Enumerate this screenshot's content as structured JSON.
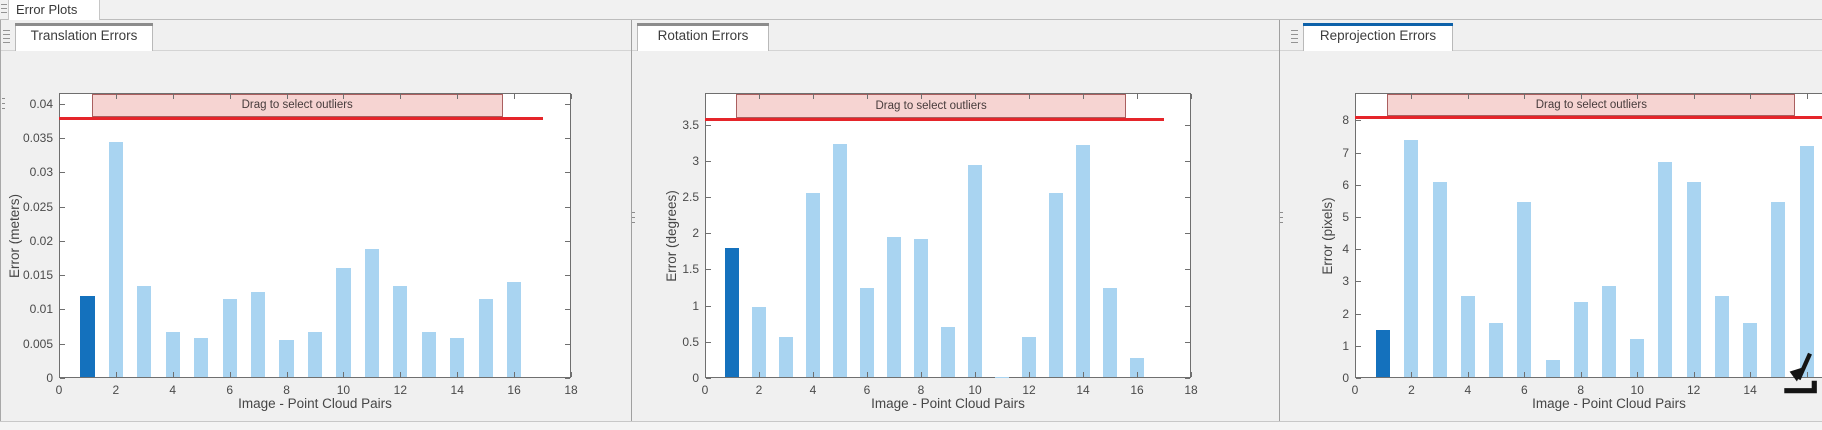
{
  "window": {
    "document_tab_label": "Error Plots"
  },
  "figure_tabs": [
    {
      "label": "Translation Errors",
      "active": false
    },
    {
      "label": "Rotation Errors",
      "active": false
    },
    {
      "label": "Reprojection Errors",
      "active": true
    }
  ],
  "colors": {
    "bar_light": "#a9d4f1",
    "bar_highlight": "#1471bd",
    "threshold_line": "#e5252a",
    "band_fill": "#f6d4d2",
    "band_border": "#aa5f5f",
    "active_tab_accent": "#0d61a9",
    "inactive_tab_accent": "#8c8c8c"
  },
  "band_label": "Drag to select outliers",
  "chart_data": [
    {
      "type": "bar",
      "title": "Translation Errors",
      "xlabel": "Image - Point Cloud Pairs",
      "ylabel": "Error (meters)",
      "xlim": [
        0,
        18
      ],
      "ylim": [
        0,
        0.0416
      ],
      "x": [
        1,
        2,
        3,
        4,
        5,
        6,
        7,
        8,
        9,
        10,
        11,
        12,
        13,
        14,
        15,
        16
      ],
      "values": [
        0.012,
        0.0345,
        0.0135,
        0.0067,
        0.0058,
        0.0116,
        0.0126,
        0.0056,
        0.0067,
        0.016,
        0.0188,
        0.0135,
        0.0067,
        0.0058,
        0.0116,
        0.014
      ],
      "highlight_index": 0,
      "yticks": {
        "values": [
          0,
          0.005,
          0.01,
          0.015,
          0.02,
          0.025,
          0.03,
          0.035,
          0.04
        ],
        "labels": [
          "0",
          "0.005",
          "0.01",
          "0.015",
          "0.02",
          "0.025",
          "0.03",
          "0.035",
          "0.04"
        ]
      },
      "xticks": {
        "values": [
          0,
          2,
          4,
          6,
          8,
          10,
          12,
          14,
          16,
          18
        ],
        "labels": [
          "0",
          "2",
          "4",
          "6",
          "8",
          "10",
          "12",
          "14",
          "16",
          "18"
        ]
      },
      "threshold": 0.038,
      "threshold_x_end": 17,
      "band": {
        "x_start": 1.15,
        "x_end": 15.6
      }
    },
    {
      "type": "bar",
      "title": "Rotation Errors",
      "xlabel": "Image - Point Cloud Pairs",
      "ylabel": "Error (degrees)",
      "xlim": [
        0,
        18
      ],
      "ylim": [
        0,
        3.94
      ],
      "x": [
        1,
        2,
        3,
        4,
        5,
        6,
        7,
        8,
        9,
        10,
        11,
        12,
        13,
        14,
        15,
        16
      ],
      "values": [
        1.8,
        0.98,
        0.56,
        2.56,
        3.23,
        1.25,
        1.95,
        1.92,
        0.7,
        2.95,
        0.02,
        0.56,
        2.56,
        3.22,
        1.25,
        0.27
      ],
      "highlight_index": 0,
      "yticks": {
        "values": [
          0,
          0.5,
          1,
          1.5,
          2,
          2.5,
          3,
          3.5
        ],
        "labels": [
          "0",
          "0.5",
          "1",
          "1.5",
          "2",
          "2.5",
          "3",
          "3.5"
        ]
      },
      "xticks": {
        "values": [
          0,
          2,
          4,
          6,
          8,
          10,
          12,
          14,
          16,
          18
        ],
        "labels": [
          "0",
          "2",
          "4",
          "6",
          "8",
          "10",
          "12",
          "14",
          "16",
          "18"
        ]
      },
      "threshold": 3.58,
      "threshold_x_end": 17,
      "band": {
        "x_start": 1.15,
        "x_end": 15.6
      }
    },
    {
      "type": "bar",
      "title": "Reprojection Errors",
      "xlabel": "Image - Point Cloud Pairs",
      "ylabel": "Error (pixels)",
      "xlim": [
        0,
        18
      ],
      "ylim": [
        0,
        8.85
      ],
      "x": [
        1,
        2,
        3,
        4,
        5,
        6,
        7,
        8,
        9,
        10,
        11,
        12,
        13,
        14,
        15,
        16
      ],
      "values": [
        1.5,
        7.4,
        6.1,
        2.55,
        1.7,
        5.45,
        0.55,
        2.35,
        2.85,
        1.2,
        6.7,
        6.1,
        2.55,
        1.7,
        5.45,
        7.2
      ],
      "highlight_index": 0,
      "yticks": {
        "values": [
          0,
          1,
          2,
          3,
          4,
          5,
          6,
          7,
          8
        ],
        "labels": [
          "0",
          "1",
          "2",
          "3",
          "4",
          "5",
          "6",
          "7",
          "8"
        ]
      },
      "xticks": {
        "values": [
          0,
          2,
          4,
          6,
          8,
          10,
          12,
          14,
          16
        ],
        "labels": [
          "0",
          "2",
          "4",
          "6",
          "8",
          "10",
          "12",
          "14",
          ""
        ]
      },
      "threshold": 8.1,
      "threshold_x_end": 17,
      "band": {
        "x_start": 1.15,
        "x_end": 15.6
      }
    }
  ]
}
